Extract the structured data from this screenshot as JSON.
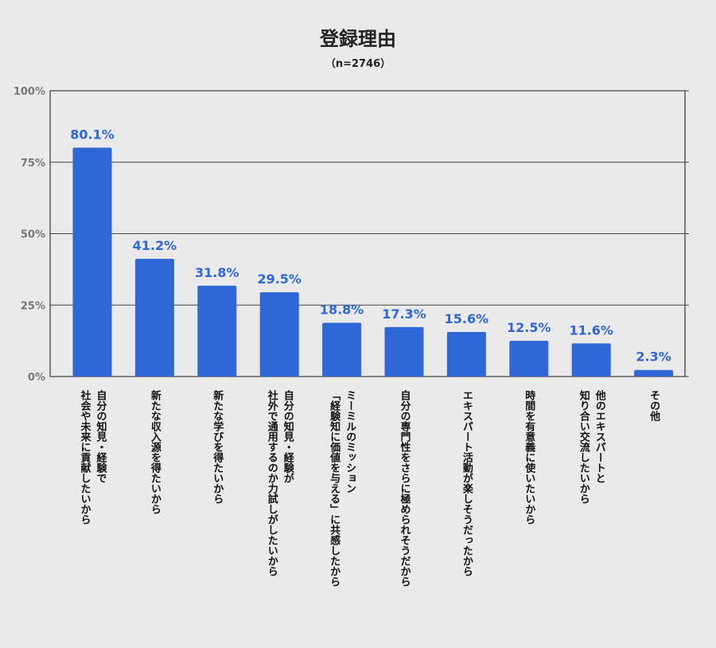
{
  "chart_data": {
    "type": "bar",
    "title": "登録理由",
    "subtitle": "（n=2746）",
    "yticks": [
      "0%",
      "25%",
      "50%",
      "75%",
      "100%"
    ],
    "ylim": [
      0,
      100
    ],
    "grid": true,
    "bar_color": "#2f67d6",
    "categories": [
      [
        "自分の知見・経験で",
        "社会や未来に貢献したいから"
      ],
      [
        "新たな収入源を得たいから"
      ],
      [
        "新たな学びを得たいから"
      ],
      [
        "自分の知見・経験が",
        "社外で通用するのか力試しがしたいから"
      ],
      [
        "ミーミルのミッション",
        "「経験知に価値を与える」に共感したから"
      ],
      [
        "自分の専門性をさらに極められそうだから"
      ],
      [
        "エキスパート活動が楽しそうだったから"
      ],
      [
        "時間を有意義に使いたいから"
      ],
      [
        "他のエキスパートと",
        "知り合い交流したいから"
      ],
      [
        "その他"
      ]
    ],
    "values": [
      80.1,
      41.2,
      31.8,
      29.5,
      18.8,
      17.3,
      15.6,
      12.5,
      11.6,
      2.3
    ],
    "value_labels": [
      "80.1%",
      "41.2%",
      "31.8%",
      "29.5%",
      "18.8%",
      "17.3%",
      "15.6%",
      "12.5%",
      "11.6%",
      "2.3%"
    ]
  }
}
